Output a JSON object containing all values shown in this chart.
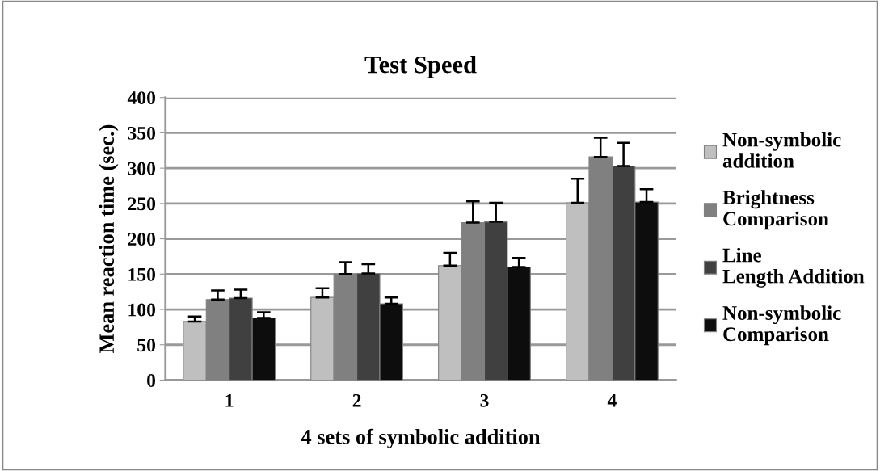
{
  "chart_data": {
    "type": "bar",
    "title": "Test Speed",
    "xlabel": "4 sets of symbolic addition",
    "ylabel": "Mean reaction time (sec.)",
    "categories": [
      "1",
      "2",
      "3",
      "4"
    ],
    "series": [
      {
        "name": "Non-symbolic addition",
        "color": "#bfbfbf",
        "values": [
          83,
          117,
          162,
          251
        ],
        "errors": [
          [
            83,
            90
          ],
          [
            117,
            130
          ],
          [
            162,
            180
          ],
          [
            251,
            285
          ]
        ]
      },
      {
        "name": "Brightness Comparison",
        "color": "#808080",
        "values": [
          114,
          150,
          223,
          316
        ],
        "errors": [
          [
            114,
            127
          ],
          [
            150,
            167
          ],
          [
            223,
            253
          ],
          [
            316,
            343
          ]
        ]
      },
      {
        "name": "Line Length Addition",
        "color": "#404040",
        "values": [
          116,
          151,
          224,
          303
        ],
        "errors": [
          [
            116,
            128
          ],
          [
            151,
            164
          ],
          [
            224,
            251
          ],
          [
            303,
            336
          ]
        ]
      },
      {
        "name": "Non-symbolic Comparison",
        "color": "#0d0d0d",
        "values": [
          88,
          108,
          160,
          252
        ],
        "errors": [
          [
            88,
            96
          ],
          [
            108,
            117
          ],
          [
            160,
            173
          ],
          [
            252,
            270
          ]
        ]
      }
    ],
    "ylim": [
      0,
      400
    ],
    "yticks": [
      0,
      50,
      100,
      150,
      200,
      250,
      300,
      350,
      400
    ],
    "grid": "y",
    "legend": "right"
  }
}
